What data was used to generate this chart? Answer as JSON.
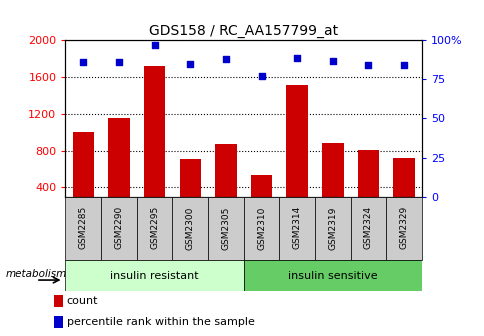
{
  "title": "GDS158 / RC_AA157799_at",
  "samples": [
    "GSM2285",
    "GSM2290",
    "GSM2295",
    "GSM2300",
    "GSM2305",
    "GSM2310",
    "GSM2314",
    "GSM2319",
    "GSM2324",
    "GSM2329"
  ],
  "counts": [
    1000,
    1150,
    1720,
    710,
    870,
    530,
    1510,
    880,
    810,
    720
  ],
  "percentile_ranks": [
    86,
    86,
    97,
    85,
    88,
    77,
    89,
    87,
    84,
    84
  ],
  "ylim_left": [
    300,
    2000
  ],
  "ylim_right": [
    0,
    100
  ],
  "yticks_left": [
    400,
    800,
    1200,
    1600,
    2000
  ],
  "yticks_right": [
    0,
    25,
    50,
    75,
    100
  ],
  "bar_color": "#cc0000",
  "scatter_color": "#0000cc",
  "group1_label": "insulin resistant",
  "group2_label": "insulin sensitive",
  "group_light_green": "#ccffcc",
  "group_dark_green": "#66cc66",
  "metabolism_label": "metabolism",
  "legend_count": "count",
  "legend_percentile": "percentile rank within the sample",
  "tick_box_color": "#cccccc"
}
